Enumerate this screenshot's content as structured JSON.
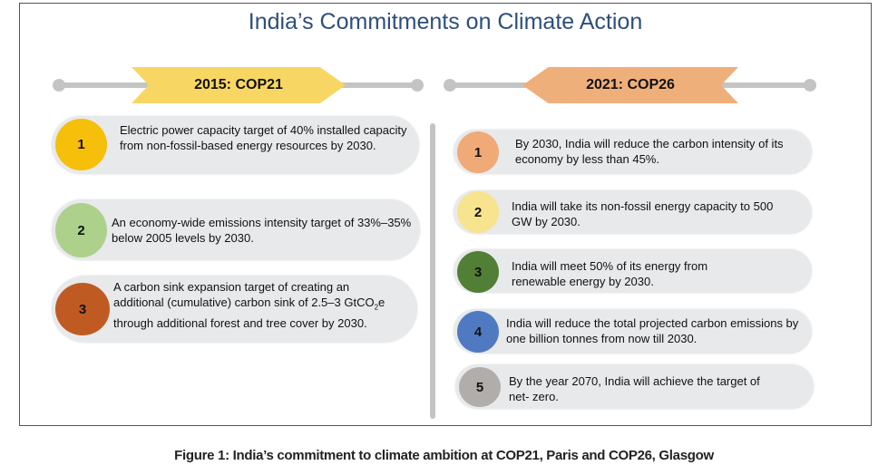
{
  "title": "India’s Commitments on Climate Action",
  "cop21": {
    "label": "2015: COP21",
    "color": "#f8d664",
    "items": [
      {
        "num": "1",
        "color": "#f5bf0a",
        "text": "Electric power capacity target of 40% installed capacity from non-fossil-based energy resources by 2030."
      },
      {
        "num": "2",
        "color": "#add18b",
        "text": "An economy-wide emissions intensity target of 33%–35% below 2005 levels by 2030."
      },
      {
        "num": "3",
        "color": "#bf5b22",
        "text_before": "A carbon sink expansion target of creating an additional (cumulative) carbon sink of 2.5–3 GtCO",
        "text_sub": "2",
        "text_after": "e through additional forest and tree cover by 2030."
      }
    ]
  },
  "cop26": {
    "label": "2021: COP26",
    "color": "#efaf7b",
    "items": [
      {
        "num": "1",
        "color": "#efaa78",
        "text": "By 2030, India will reduce the carbon intensity of its economy by less than 45%."
      },
      {
        "num": "2",
        "color": "#f8e38e",
        "text": "India will take its non-fossil energy capacity to 500 GW by 2030."
      },
      {
        "num": "3",
        "color": "#507f35",
        "text": "India will meet 50% of its energy from renewable energy by 2030."
      },
      {
        "num": "4",
        "color": "#4f7ac2",
        "text": "India will reduce the total projected carbon emissions by one billion tonnes from now till 2030."
      },
      {
        "num": "5",
        "color": "#b0adab",
        "text": "By the year 2070, India will achieve the target of net- zero."
      }
    ]
  },
  "caption": "Figure 1: India’s commitment to climate ambition at COP21, Paris and COP26, Glasgow"
}
